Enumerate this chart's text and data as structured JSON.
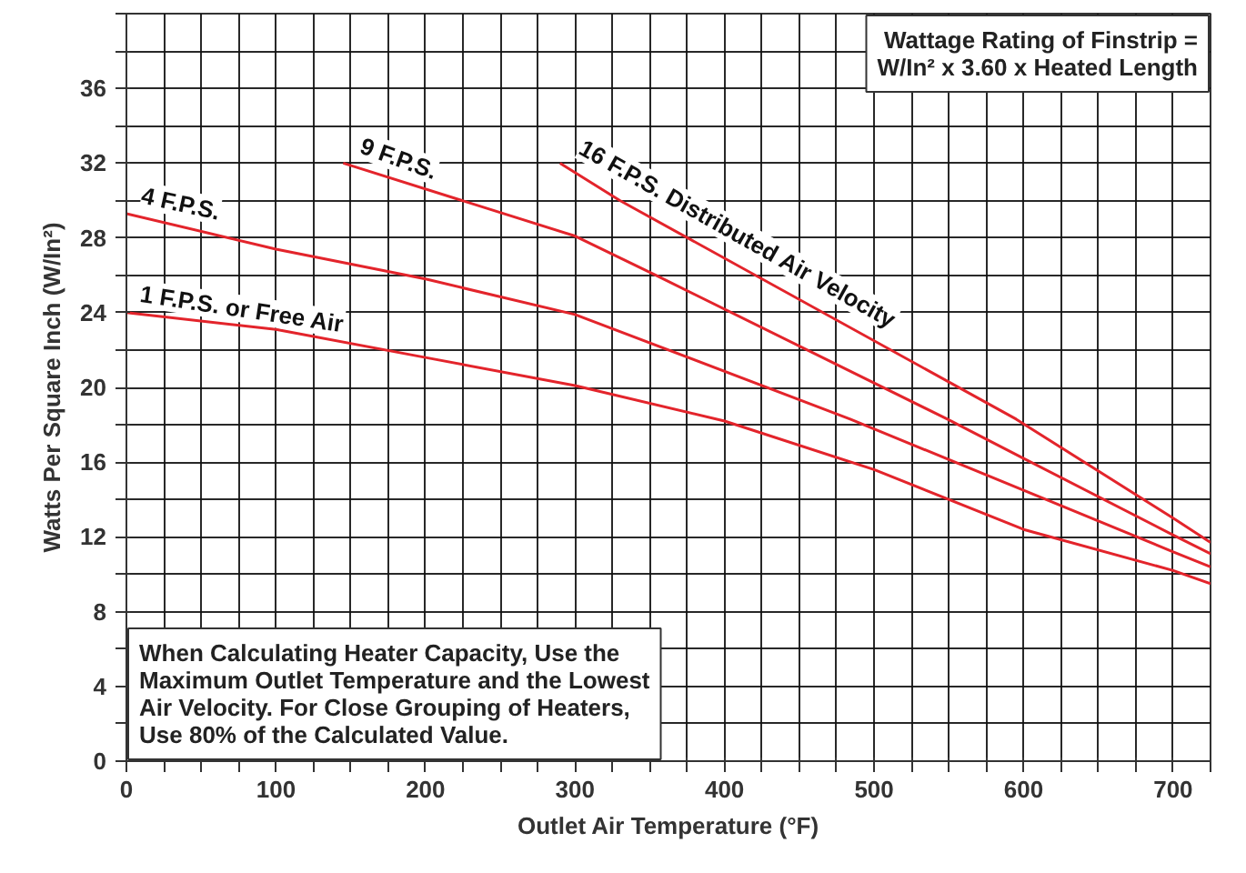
{
  "chart_data": {
    "type": "line",
    "xlabel": "Outlet Air Temperature (°F)",
    "ylabel": "Watts Per Square Inch (W/In²)",
    "xlim": [
      0,
      725
    ],
    "ylim": [
      0,
      40
    ],
    "xticks": [
      0,
      {
        "value": 25,
        "label": null
      },
      {
        "value": 50,
        "label": null
      },
      {
        "value": 75,
        "label": null
      },
      100,
      {
        "value": 125,
        "label": null
      },
      {
        "value": 150,
        "label": null
      },
      {
        "value": 175,
        "label": null
      },
      200,
      {
        "value": 225,
        "label": null
      },
      {
        "value": 250,
        "label": null
      },
      {
        "value": 275,
        "label": null
      },
      300,
      {
        "value": 325,
        "label": null
      },
      {
        "value": 350,
        "label": null
      },
      {
        "value": 375,
        "label": null
      },
      400,
      {
        "value": 425,
        "label": null
      },
      {
        "value": 450,
        "label": null
      },
      {
        "value": 475,
        "label": null
      },
      500,
      {
        "value": 525,
        "label": null
      },
      {
        "value": 550,
        "label": null
      },
      {
        "value": 575,
        "label": null
      },
      600,
      {
        "value": 625,
        "label": null
      },
      {
        "value": 650,
        "label": null
      },
      {
        "value": 675,
        "label": null
      },
      700,
      {
        "value": 725,
        "label": null
      }
    ],
    "yticks": [
      0,
      {
        "value": 2,
        "label": null
      },
      4,
      {
        "value": 6,
        "label": null
      },
      8,
      {
        "value": 10,
        "label": null
      },
      12,
      {
        "value": 14,
        "label": null
      },
      16,
      {
        "value": 18,
        "label": null
      },
      20,
      {
        "value": 22,
        "label": null
      },
      24,
      {
        "value": 26,
        "label": null
      },
      28,
      {
        "value": 30,
        "label": null
      },
      32,
      {
        "value": 34,
        "label": null
      },
      36,
      {
        "value": 38,
        "label": null
      },
      {
        "value": 40,
        "label": null
      }
    ],
    "grid": true,
    "marker": "none",
    "line_style": "solid",
    "series": [
      {
        "name": "1 F.P.S. or Free Air",
        "color": "#e3242b",
        "x": [
          0,
          100,
          200,
          300,
          400,
          500,
          600,
          700,
          725
        ],
        "values": [
          24.0,
          23.1,
          21.6,
          20.1,
          18.2,
          15.6,
          12.4,
          10.2,
          9.5
        ]
      },
      {
        "name": "4 F.P.S.",
        "color": "#e3242b",
        "x": [
          0,
          100,
          200,
          300,
          484,
          600,
          700,
          725
        ],
        "values": [
          29.3,
          27.4,
          25.8,
          23.9,
          18.3,
          14.5,
          11.2,
          10.4
        ]
      },
      {
        "name": "9 F.P.S.",
        "color": "#e3242b",
        "x": [
          145,
          300,
          354,
          549,
          600,
          700,
          725
        ],
        "values": [
          32.0,
          28.1,
          26.0,
          18.3,
          16.2,
          12.1,
          11.1
        ]
      },
      {
        "name": "16 F.P.S. Distributed Air Velocity",
        "color": "#e3242b",
        "x": [
          290,
          330,
          595,
          700,
          725
        ],
        "values": [
          32.0,
          30.0,
          18.3,
          13.0,
          11.7
        ]
      }
    ],
    "annotations": [
      "Wattage Rating of Finstrip =\nW/In² x 3.60 x Heated Length",
      "When Calculating Heater Capacity, Use the\nMaximum Outlet Temperature and the Lowest\nAir Velocity. For Close Grouping of Heaters,\nUse 80% of the Calculated Value."
    ]
  }
}
